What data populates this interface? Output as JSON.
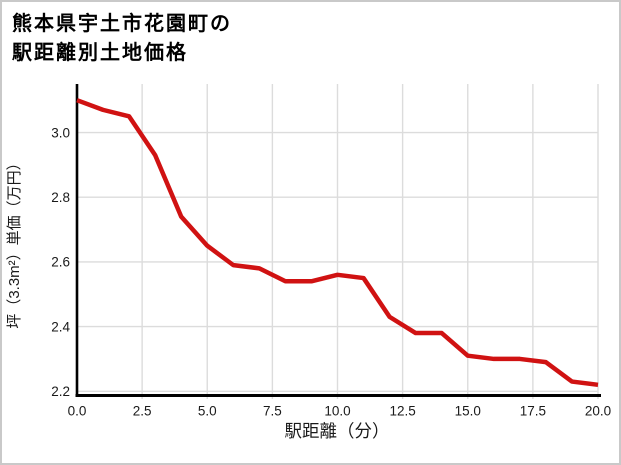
{
  "title": {
    "line1": "熊本県宇土市花園町の",
    "line2": "駅距離別土地価格"
  },
  "chart_data": {
    "type": "line",
    "title": "熊本県宇土市花園町の駅距離別土地価格",
    "xlabel": "駅距離（分）",
    "ylabel": "坪（3.3m²）単価（万円）",
    "x": [
      0,
      1,
      2,
      3,
      4,
      5,
      6,
      7,
      8,
      9,
      10,
      11,
      12,
      13,
      14,
      15,
      16,
      17,
      18,
      19,
      20
    ],
    "values": [
      3.1,
      3.07,
      3.05,
      2.93,
      2.74,
      2.65,
      2.59,
      2.58,
      2.54,
      2.54,
      2.56,
      2.55,
      2.43,
      2.38,
      2.38,
      2.31,
      2.3,
      2.3,
      2.29,
      2.23,
      2.22
    ],
    "xlim": [
      0,
      20
    ],
    "ylim": [
      2.19,
      3.15
    ],
    "xtick_values": [
      0,
      2.5,
      5,
      7.5,
      10,
      12.5,
      15,
      17.5,
      20
    ],
    "xtick_labels": [
      "0.0",
      "2.5",
      "5.0",
      "7.5",
      "10.0",
      "12.5",
      "15.0",
      "17.5",
      "20.0"
    ],
    "ytick_values": [
      2.2,
      2.4,
      2.6,
      2.8,
      3.0
    ],
    "ytick_labels": [
      "2.2",
      "2.4",
      "2.6",
      "2.8",
      "3.0"
    ],
    "grid": true,
    "legend": false,
    "colors": {
      "line": "#d01212",
      "grid": "#dcdcdc",
      "axis": "#000000",
      "text": "#1a1a1a"
    }
  }
}
